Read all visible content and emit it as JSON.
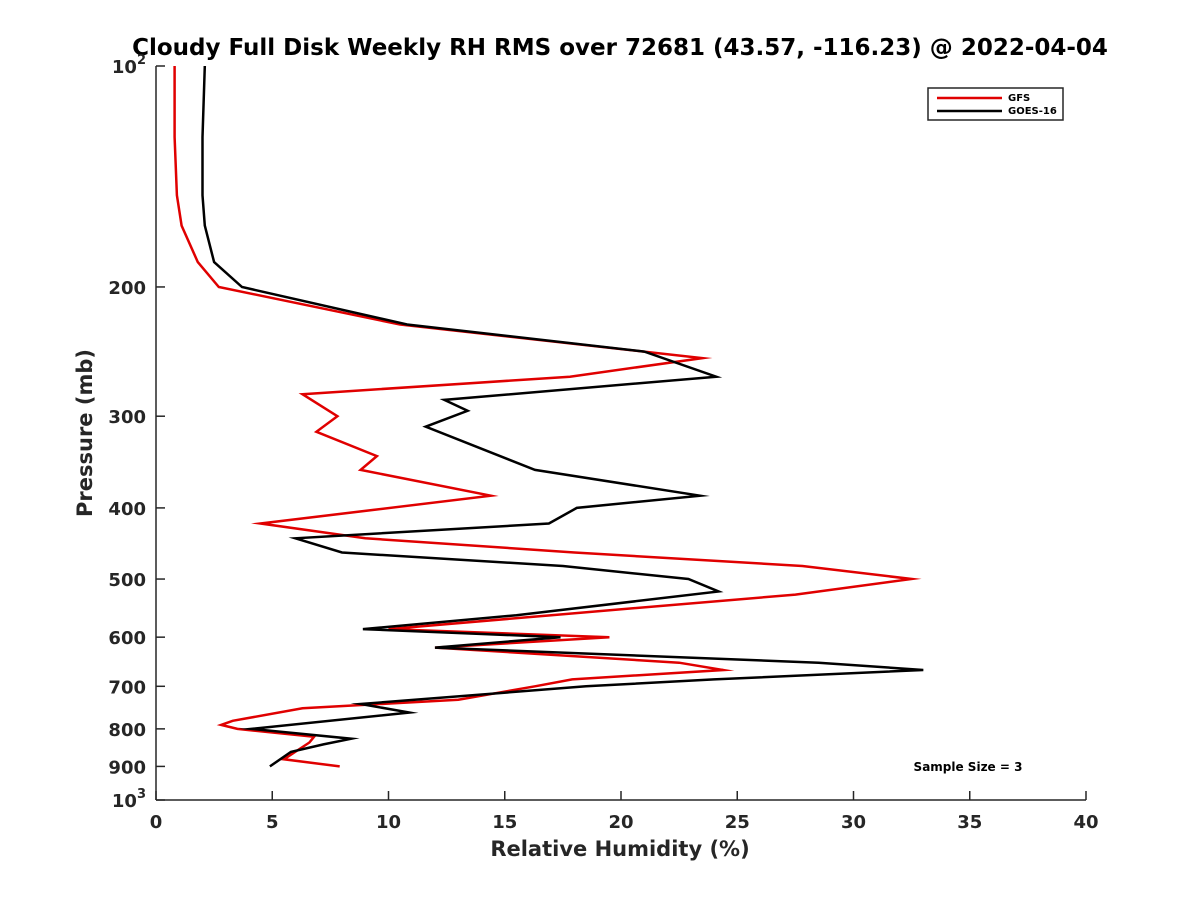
{
  "chart_data": {
    "type": "line",
    "title": "Cloudy Full Disk Weekly RH RMS over 72681 (43.57, -116.23) @ 2022-04-04",
    "xlabel": "Relative Humidity (%)",
    "ylabel": "Pressure (mb)",
    "xlim": [
      0,
      40
    ],
    "ylim": [
      100,
      1000
    ],
    "yscale": "log",
    "y_reversed": true,
    "grid": false,
    "legend_position": "top-right",
    "x_ticks": [
      {
        "value": 0,
        "label": "0"
      },
      {
        "value": 5,
        "label": "5"
      },
      {
        "value": 10,
        "label": "10"
      },
      {
        "value": 15,
        "label": "15"
      },
      {
        "value": 20,
        "label": "20"
      },
      {
        "value": 25,
        "label": "25"
      },
      {
        "value": 30,
        "label": "30"
      },
      {
        "value": 35,
        "label": "35"
      },
      {
        "value": 40,
        "label": "40"
      }
    ],
    "y_ticks": [
      {
        "value": 100,
        "base": "10",
        "exp": "2"
      },
      {
        "value": 200,
        "label": "200"
      },
      {
        "value": 300,
        "label": "300"
      },
      {
        "value": 400,
        "label": "400"
      },
      {
        "value": 500,
        "label": "500"
      },
      {
        "value": 600,
        "label": "600"
      },
      {
        "value": 700,
        "label": "700"
      },
      {
        "value": 800,
        "label": "800"
      },
      {
        "value": 900,
        "label": "900"
      },
      {
        "value": 1000,
        "base": "10",
        "exp": "3"
      }
    ],
    "series": [
      {
        "name": "GFS",
        "color": "#e00000",
        "points": [
          [
            0.8,
            100
          ],
          [
            0.8,
            125
          ],
          [
            0.9,
            150
          ],
          [
            1.1,
            165
          ],
          [
            1.8,
            185
          ],
          [
            2.7,
            200
          ],
          [
            10.5,
            225
          ],
          [
            23.5,
            250
          ],
          [
            17.8,
            265
          ],
          [
            6.3,
            280
          ],
          [
            7.8,
            300
          ],
          [
            6.9,
            315
          ],
          [
            9.5,
            340
          ],
          [
            8.8,
            355
          ],
          [
            14.4,
            385
          ],
          [
            4.5,
            420
          ],
          [
            9.0,
            440
          ],
          [
            18.0,
            460
          ],
          [
            27.8,
            480
          ],
          [
            32.5,
            500
          ],
          [
            27.5,
            525
          ],
          [
            17.0,
            560
          ],
          [
            10.0,
            585
          ],
          [
            19.5,
            600
          ],
          [
            12.0,
            620
          ],
          [
            22.5,
            650
          ],
          [
            24.4,
            665
          ],
          [
            17.9,
            685
          ],
          [
            16.3,
            700
          ],
          [
            13.0,
            730
          ],
          [
            6.3,
            750
          ],
          [
            3.3,
            780
          ],
          [
            2.8,
            790
          ],
          [
            3.5,
            800
          ],
          [
            6.8,
            820
          ],
          [
            6.6,
            835
          ],
          [
            5.5,
            880
          ],
          [
            7.9,
            900
          ]
        ]
      },
      {
        "name": "GOES-16",
        "color": "#000000",
        "points": [
          [
            2.1,
            100
          ],
          [
            2.0,
            125
          ],
          [
            2.0,
            150
          ],
          [
            2.1,
            165
          ],
          [
            2.5,
            185
          ],
          [
            3.7,
            200
          ],
          [
            10.8,
            225
          ],
          [
            21.0,
            245
          ],
          [
            24.1,
            265
          ],
          [
            12.4,
            285
          ],
          [
            13.4,
            295
          ],
          [
            11.6,
            310
          ],
          [
            16.3,
            355
          ],
          [
            23.4,
            385
          ],
          [
            18.1,
            400
          ],
          [
            16.9,
            420
          ],
          [
            6.0,
            440
          ],
          [
            8.0,
            460
          ],
          [
            17.5,
            480
          ],
          [
            22.9,
            500
          ],
          [
            24.2,
            520
          ],
          [
            15.5,
            560
          ],
          [
            8.9,
            585
          ],
          [
            17.4,
            600
          ],
          [
            12.0,
            620
          ],
          [
            28.5,
            650
          ],
          [
            33.0,
            665
          ],
          [
            24.0,
            685
          ],
          [
            18.5,
            700
          ],
          [
            8.8,
            740
          ],
          [
            10.9,
            760
          ],
          [
            4.1,
            800
          ],
          [
            8.4,
            825
          ],
          [
            7.2,
            840
          ],
          [
            5.8,
            860
          ],
          [
            4.9,
            900
          ]
        ]
      }
    ],
    "annotations": [
      {
        "text": "Sample Size = 3"
      }
    ]
  }
}
